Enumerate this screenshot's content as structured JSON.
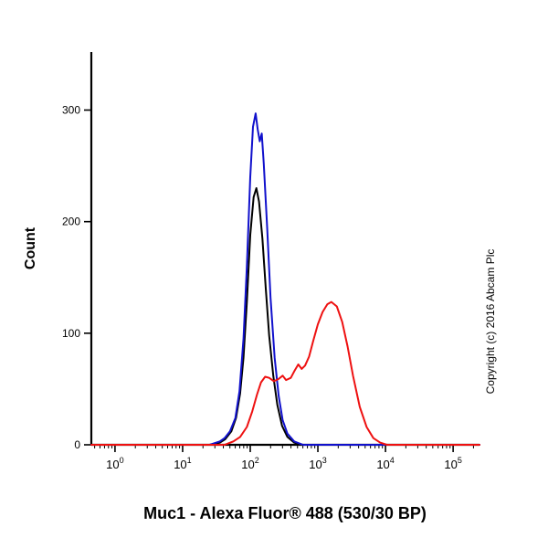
{
  "copyright": "Copyright (c) 2016 Abcam Plc",
  "chart_data": {
    "type": "line",
    "title": "Muc1 - Alexa Fluor® 488 (530/30 BP)",
    "xlabel": "Muc1 - Alexa Fluor® 488 (530/30 BP)",
    "ylabel": "Count",
    "x_scale": "log",
    "x_tick_exponents": [
      0,
      1,
      2,
      3,
      4,
      5
    ],
    "y_ticks": [
      0,
      100,
      200,
      300
    ],
    "xlim_log10": [
      -0.35,
      5.39
    ],
    "ylim": [
      0,
      352
    ],
    "grid": false,
    "legend": "none",
    "series": [
      {
        "name": "black-curve",
        "color": "#000000",
        "points": [
          [
            1.4,
            0
          ],
          [
            1.55,
            2
          ],
          [
            1.63,
            5
          ],
          [
            1.72,
            12
          ],
          [
            1.79,
            24
          ],
          [
            1.85,
            46
          ],
          [
            1.9,
            78
          ],
          [
            1.95,
            128
          ],
          [
            2.0,
            188
          ],
          [
            2.05,
            222
          ],
          [
            2.09,
            230
          ],
          [
            2.13,
            218
          ],
          [
            2.18,
            185
          ],
          [
            2.23,
            140
          ],
          [
            2.28,
            98
          ],
          [
            2.34,
            62
          ],
          [
            2.4,
            36
          ],
          [
            2.47,
            17
          ],
          [
            2.55,
            7
          ],
          [
            2.65,
            2
          ],
          [
            2.75,
            0
          ]
        ]
      },
      {
        "name": "blue-curve",
        "color": "#1111cc",
        "points": [
          [
            1.4,
            0
          ],
          [
            1.55,
            3
          ],
          [
            1.62,
            6
          ],
          [
            1.7,
            12
          ],
          [
            1.78,
            24
          ],
          [
            1.84,
            48
          ],
          [
            1.9,
            95
          ],
          [
            1.95,
            160
          ],
          [
            2.0,
            240
          ],
          [
            2.04,
            285
          ],
          [
            2.08,
            297
          ],
          [
            2.11,
            283
          ],
          [
            2.14,
            272
          ],
          [
            2.17,
            279
          ],
          [
            2.2,
            252
          ],
          [
            2.25,
            195
          ],
          [
            2.3,
            132
          ],
          [
            2.36,
            78
          ],
          [
            2.42,
            44
          ],
          [
            2.48,
            22
          ],
          [
            2.55,
            10
          ],
          [
            2.65,
            3
          ],
          [
            2.78,
            0
          ]
        ]
      },
      {
        "name": "red-curve",
        "color": "#ee1111",
        "points": [
          [
            1.62,
            0
          ],
          [
            1.75,
            3
          ],
          [
            1.85,
            7
          ],
          [
            1.95,
            16
          ],
          [
            2.03,
            30
          ],
          [
            2.1,
            45
          ],
          [
            2.16,
            56
          ],
          [
            2.22,
            61
          ],
          [
            2.28,
            60
          ],
          [
            2.35,
            57
          ],
          [
            2.42,
            59
          ],
          [
            2.48,
            62
          ],
          [
            2.53,
            58
          ],
          [
            2.6,
            60
          ],
          [
            2.66,
            67
          ],
          [
            2.71,
            72
          ],
          [
            2.76,
            68
          ],
          [
            2.81,
            71
          ],
          [
            2.87,
            79
          ],
          [
            2.93,
            93
          ],
          [
            3.0,
            108
          ],
          [
            3.07,
            119
          ],
          [
            3.14,
            126
          ],
          [
            3.2,
            128
          ],
          [
            3.28,
            124
          ],
          [
            3.36,
            110
          ],
          [
            3.44,
            88
          ],
          [
            3.52,
            62
          ],
          [
            3.62,
            34
          ],
          [
            3.72,
            16
          ],
          [
            3.82,
            6
          ],
          [
            3.92,
            2
          ],
          [
            4.02,
            0
          ]
        ]
      }
    ]
  }
}
